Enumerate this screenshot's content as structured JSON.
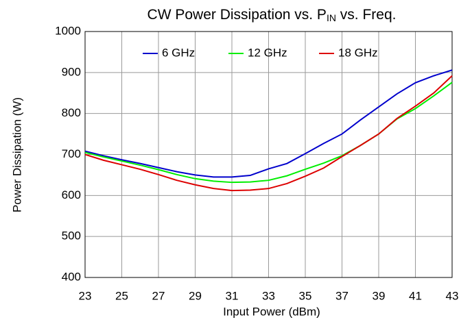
{
  "chart_data": {
    "type": "line",
    "title": [
      "CW Power Dissipation vs. P",
      "IN",
      " vs. Freq."
    ],
    "x_label": "Input Power (dBm)",
    "y_label": "Power Dissipation (W)",
    "x": [
      23,
      24,
      25,
      26,
      27,
      28,
      29,
      30,
      31,
      32,
      33,
      34,
      35,
      36,
      37,
      38,
      39,
      40,
      41,
      42,
      43
    ],
    "series": [
      {
        "name": "6 GHz",
        "color": "#0000cc",
        "values": [
          708,
          697,
          687,
          678,
          668,
          658,
          650,
          645,
          645,
          649,
          665,
          678,
          702,
          727,
          750,
          784,
          816,
          848,
          875,
          892,
          906
        ]
      },
      {
        "name": "12 GHz",
        "color": "#00ee00",
        "values": [
          705,
          694,
          684,
          674,
          663,
          651,
          641,
          635,
          632,
          633,
          637,
          648,
          664,
          679,
          697,
          722,
          750,
          787,
          812,
          843,
          876
        ]
      },
      {
        "name": "18 GHz",
        "color": "#dd0000",
        "values": [
          700,
          686,
          675,
          664,
          651,
          637,
          626,
          617,
          612,
          613,
          617,
          629,
          647,
          667,
          695,
          722,
          750,
          788,
          818,
          850,
          892
        ]
      }
    ],
    "xlim": [
      23,
      43
    ],
    "xticks": [
      23,
      25,
      27,
      29,
      31,
      33,
      35,
      37,
      39,
      41,
      43
    ],
    "ylim": [
      400,
      1000
    ],
    "yticks": [
      400,
      500,
      600,
      700,
      800,
      900,
      1000
    ],
    "grid": true,
    "legend": "top"
  }
}
